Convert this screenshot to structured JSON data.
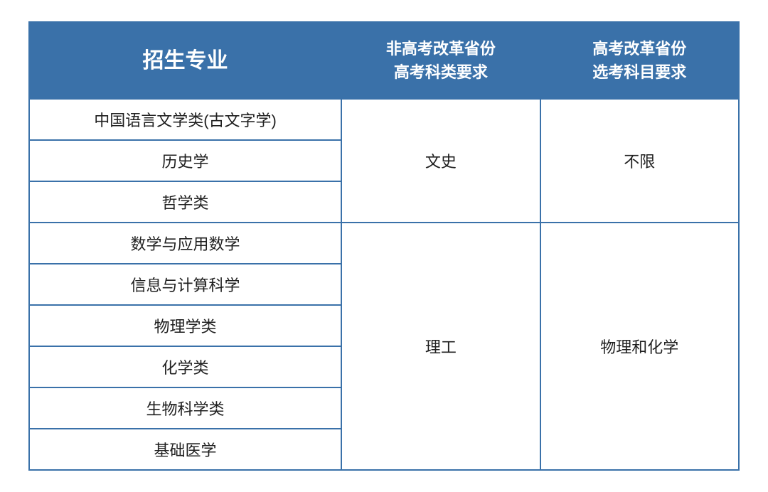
{
  "header": {
    "major": "招生专业",
    "req_nonreform_l1": "非高考改革省份",
    "req_nonreform_l2": "高考科类要求",
    "req_reform_l1": "高考改革省份",
    "req_reform_l2": "选考科目要求"
  },
  "group1": {
    "majors": [
      "中国语言文学类(古文字学)",
      "历史学",
      "哲学类"
    ],
    "nonreform": "文史",
    "reform": "不限"
  },
  "group2": {
    "majors": [
      "数学与应用数学",
      "信息与计算科学",
      "物理学类",
      "化学类",
      "生物科学类",
      "基础医学"
    ],
    "nonreform": "理工",
    "reform": "物理和化学"
  },
  "style": {
    "header_bg": "#3a71a9",
    "header_fg": "#ffffff",
    "border_color": "#3a71a9",
    "cell_bg": "#ffffff",
    "cell_fg": "#202020",
    "header_major_fontsize": 30,
    "header_req_fontsize": 22,
    "cell_fontsize": 22
  }
}
